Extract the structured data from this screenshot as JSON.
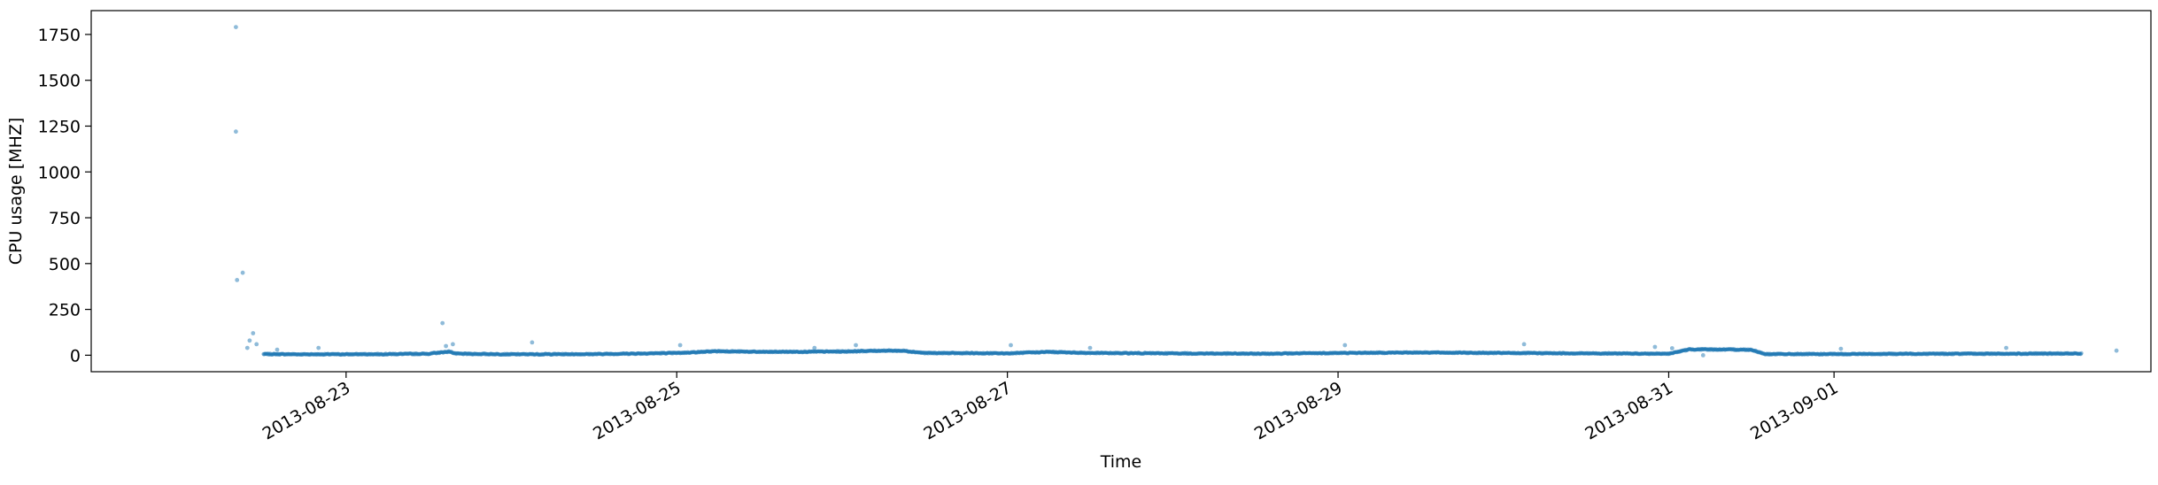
{
  "chart_data": {
    "type": "scatter",
    "title": "",
    "xlabel": "Time",
    "ylabel": "CPU usage [MHZ]",
    "x_axis_type": "date",
    "xlim": [
      "2013-08-21T11:00",
      "2013-09-02T22:00"
    ],
    "ylim": [
      -90,
      1880
    ],
    "x_ticks": [
      "2013-08-23",
      "2013-08-25",
      "2013-08-27",
      "2013-08-29",
      "2013-08-31",
      "2013-09-01"
    ],
    "y_ticks": [
      0,
      250,
      500,
      750,
      1000,
      1250,
      1500,
      1750
    ],
    "y_tick_labels": [
      "0",
      "250",
      "500",
      "750",
      "1000",
      "1250",
      "1500",
      "1750"
    ],
    "grid": false,
    "legend": "none",
    "marker_color": "#1f77b4",
    "series": [
      {
        "name": "",
        "baseline": [
          [
            "2013-08-22T12:00",
            6
          ],
          [
            "2013-08-22T18:00",
            5
          ],
          [
            "2013-08-23T00:00",
            5
          ],
          [
            "2013-08-23T06:00",
            6
          ],
          [
            "2013-08-23T12:00",
            8
          ],
          [
            "2013-08-23T15:00",
            20
          ],
          [
            "2013-08-23T16:00",
            8
          ],
          [
            "2013-08-24T00:00",
            5
          ],
          [
            "2013-08-24T12:00",
            6
          ],
          [
            "2013-08-25T00:00",
            12
          ],
          [
            "2013-08-25T06:00",
            22
          ],
          [
            "2013-08-25T12:00",
            18
          ],
          [
            "2013-08-26T00:00",
            20
          ],
          [
            "2013-08-26T06:00",
            25
          ],
          [
            "2013-08-26T09:00",
            24
          ],
          [
            "2013-08-26T12:00",
            12
          ],
          [
            "2013-08-27T00:00",
            10
          ],
          [
            "2013-08-27T06:00",
            18
          ],
          [
            "2013-08-27T12:00",
            12
          ],
          [
            "2013-08-28T00:00",
            10
          ],
          [
            "2013-08-28T12:00",
            8
          ],
          [
            "2013-08-29T00:00",
            12
          ],
          [
            "2013-08-29T12:00",
            15
          ],
          [
            "2013-08-30T00:00",
            12
          ],
          [
            "2013-08-30T12:00",
            10
          ],
          [
            "2013-08-31T00:00",
            8
          ],
          [
            "2013-08-31T03:00",
            32
          ],
          [
            "2013-08-31T12:00",
            30
          ],
          [
            "2013-08-31T14:00",
            6
          ],
          [
            "2013-09-01T00:00",
            6
          ],
          [
            "2013-09-01T12:00",
            8
          ],
          [
            "2013-09-02T00:00",
            8
          ],
          [
            "2013-09-02T12:00",
            9
          ]
        ],
        "outliers": [
          [
            "2013-08-22T08:00",
            1790
          ],
          [
            "2013-08-22T08:00",
            1220
          ],
          [
            "2013-08-22T08:10",
            410
          ],
          [
            "2013-08-22T09:00",
            450
          ],
          [
            "2013-08-22T10:00",
            80
          ],
          [
            "2013-08-22T10:30",
            120
          ],
          [
            "2013-08-22T11:00",
            60
          ],
          [
            "2013-08-22T09:40",
            40
          ],
          [
            "2013-08-22T14:00",
            30
          ],
          [
            "2013-08-22T20:00",
            40
          ],
          [
            "2013-08-23T14:00",
            175
          ],
          [
            "2013-08-23T14:30",
            50
          ],
          [
            "2013-08-23T15:30",
            60
          ],
          [
            "2013-08-24T03:00",
            70
          ],
          [
            "2013-08-25T00:30",
            55
          ],
          [
            "2013-08-25T20:00",
            40
          ],
          [
            "2013-08-26T02:00",
            55
          ],
          [
            "2013-08-27T00:30",
            55
          ],
          [
            "2013-08-27T12:00",
            40
          ],
          [
            "2013-08-29T01:00",
            55
          ],
          [
            "2013-08-30T03:00",
            60
          ],
          [
            "2013-08-30T22:00",
            45
          ],
          [
            "2013-08-31T00:30",
            38
          ],
          [
            "2013-08-31T05:00",
            0
          ],
          [
            "2013-09-01T01:00",
            35
          ],
          [
            "2013-09-02T01:00",
            40
          ],
          [
            "2013-09-02T17:00",
            25
          ]
        ]
      }
    ]
  }
}
